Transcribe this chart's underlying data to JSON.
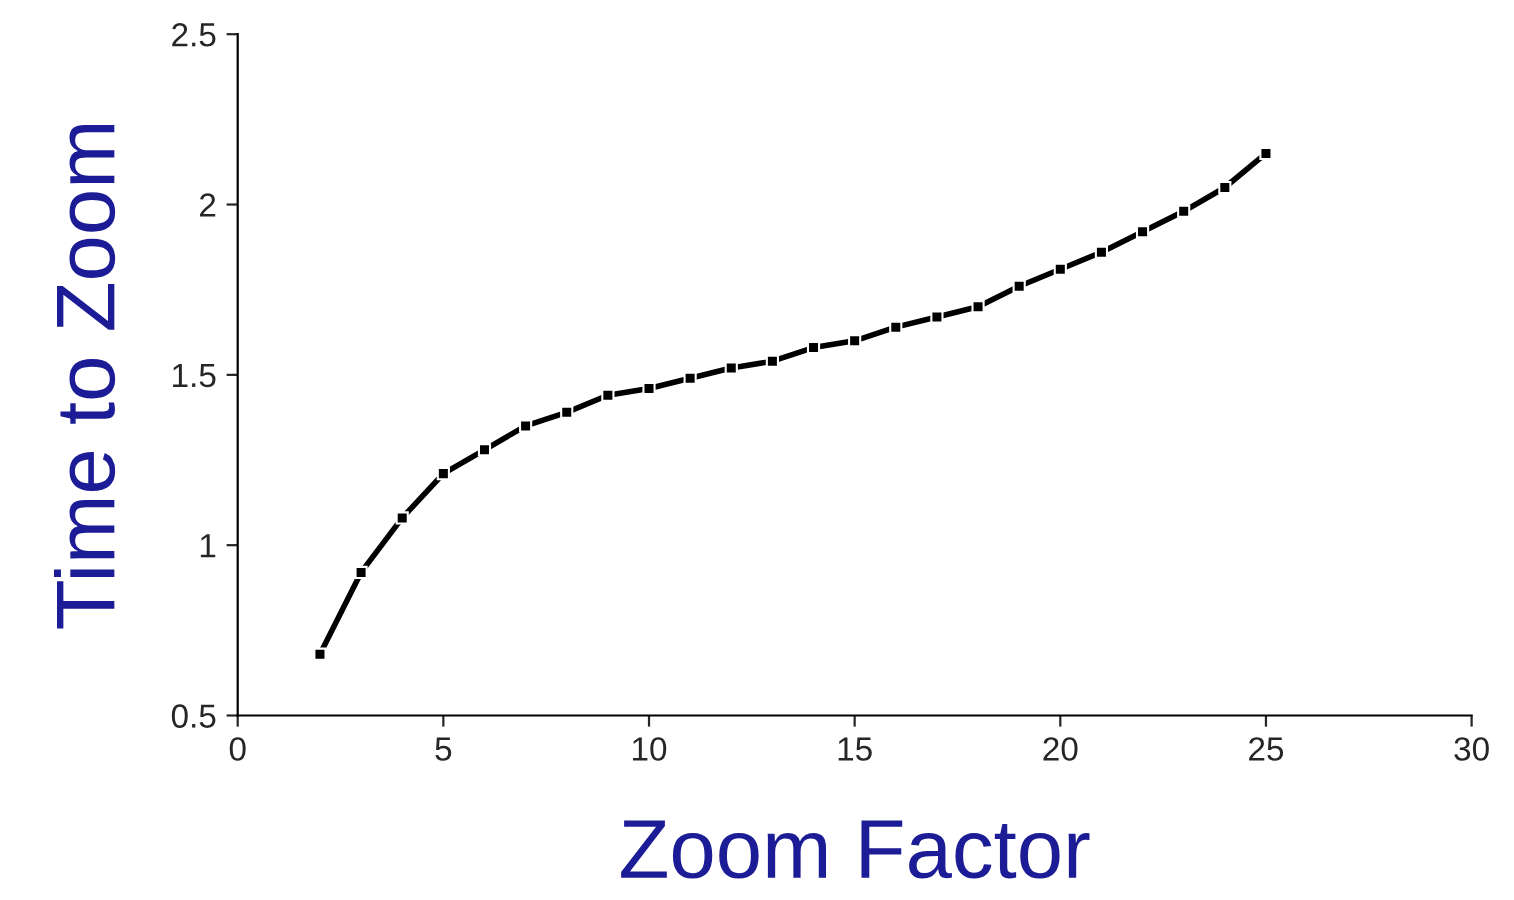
{
  "chart_data": {
    "type": "line",
    "xlabel": "Zoom Factor",
    "ylabel": "Time to Zoom",
    "x": [
      2,
      3,
      4,
      5,
      6,
      7,
      8,
      9,
      10,
      11,
      12,
      13,
      14,
      15,
      16,
      17,
      18,
      19,
      20,
      21,
      22,
      23,
      24,
      25
    ],
    "series": [
      {
        "color": "#000000",
        "values": [
          0.68,
          0.92,
          1.08,
          1.21,
          1.28,
          1.35,
          1.39,
          1.44,
          1.46,
          1.49,
          1.52,
          1.54,
          1.58,
          1.6,
          1.64,
          1.67,
          1.7,
          1.76,
          1.81,
          1.86,
          1.92,
          1.98,
          2.05,
          2.15
        ]
      }
    ],
    "xlim": [
      0,
      30
    ],
    "xticks": [
      0,
      5,
      10,
      15,
      20,
      25,
      30
    ],
    "ylim": [
      0.5,
      2.5
    ],
    "yticks": [
      0.5,
      1,
      1.5,
      2,
      2.5
    ],
    "grid": false,
    "legend": false,
    "marker": "square",
    "line_style": "solid"
  }
}
